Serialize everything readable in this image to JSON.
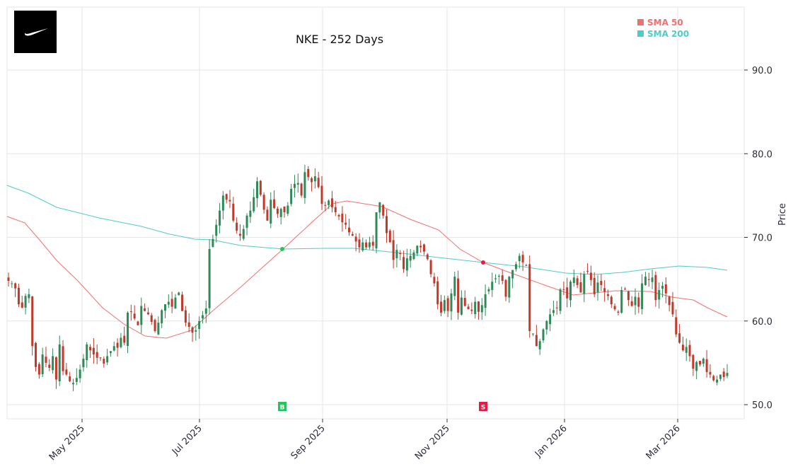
{
  "chart_data": {
    "type": "candlestick",
    "title": "NKE - 252 Days",
    "xlabel": "",
    "ylabel": "Price",
    "ylim": [
      48.3,
      97.5
    ],
    "y_ticks": [
      "50.0",
      "60.0",
      "70.0",
      "80.0",
      "90.0"
    ],
    "x_ticks": [
      "May 2025",
      "Jul 2025",
      "Sep 2025",
      "Nov 2025",
      "Jan 2026",
      "Mar 2026"
    ],
    "grid": true,
    "legend_position": "upper right",
    "legend": [
      {
        "name": "SMA 50",
        "color": "#f07070"
      },
      {
        "name": "SMA 200",
        "color": "#4ecdc4"
      }
    ],
    "colors": {
      "up": "#2e8b57",
      "down": "#c0392b",
      "sma50": "#f07070",
      "sma200": "#4ecdc4",
      "buy": "#22c55e",
      "sell": "#e11d48"
    },
    "signals": [
      {
        "type": "buy",
        "label": "B",
        "date": "Aug 2025",
        "cross_price": 68.6
      },
      {
        "type": "sell",
        "label": "S",
        "date": "Nov 2025",
        "cross_price": 67.0
      }
    ],
    "candles_close_trend": [
      64.8,
      64.5,
      63.9,
      62.0,
      61.6,
      63.0,
      63.2,
      57.0,
      54.5,
      53.6,
      56.0,
      55.0,
      54.4,
      55.8,
      53.0,
      57.2,
      54.0,
      53.6,
      52.8,
      52.6,
      53.2,
      54.2,
      55.5,
      57.2,
      56.5,
      56.0,
      55.6,
      55.6,
      54.9,
      55.8,
      56.4,
      57.0,
      56.8,
      58.0,
      57.4,
      61.0,
      61.1,
      60.3,
      59.5,
      61.8,
      61.2,
      60.8,
      59.9,
      58.8,
      59.8,
      61.3,
      62.0,
      62.3,
      61.7,
      62.8,
      63.4,
      61.2,
      59.8,
      59.3,
      58.6,
      58.9,
      60.0,
      60.7,
      61.5,
      68.6,
      69.8,
      71.5,
      73.2,
      75.0,
      74.5,
      74.3,
      72.0,
      70.8,
      70.2,
      71.0,
      72.6,
      73.2,
      74.8,
      76.7,
      75.1,
      73.3,
      72.0,
      74.5,
      73.5,
      72.8,
      73.4,
      73.0,
      73.8,
      75.8,
      76.4,
      76.5,
      75.0,
      77.8,
      77.2,
      76.6,
      77.3,
      76.0,
      74.0,
      73.8,
      74.4,
      73.6,
      73.0,
      72.5,
      71.8,
      71.5,
      70.6,
      70.2,
      69.5,
      68.8,
      69.4,
      68.8,
      69.4,
      69.0,
      73.0,
      74.2,
      72.6,
      70.5,
      69.4,
      67.3,
      68.5,
      68.0,
      66.2,
      67.5,
      67.8,
      68.2,
      69.0,
      68.8,
      68.3,
      67.4,
      65.6,
      64.5,
      62.0,
      61.0,
      62.5,
      61.2,
      63.3,
      65.3,
      61.0,
      62.8,
      61.8,
      61.4,
      61.2,
      62.3,
      61.1,
      61.9,
      63.2,
      63.8,
      64.7,
      65.1,
      65.4,
      64.8,
      62.9,
      65.3,
      66.1,
      66.8,
      67.8,
      67.0,
      66.6,
      58.8,
      58.5,
      57.0,
      57.6,
      59.0,
      60.0,
      60.8,
      61.3,
      61.6,
      63.8,
      63.8,
      62.7,
      64.7,
      65.2,
      64.3,
      63.4,
      65.6,
      65.9,
      64.9,
      63.2,
      64.6,
      64.3,
      63.5,
      63.0,
      62.0,
      61.4,
      61.0,
      63.7,
      63.8,
      62.5,
      61.8,
      62.9,
      61.7,
      64.5,
      65.3,
      64.9,
      65.2,
      62.5,
      63.7,
      64.2,
      63.3,
      61.9,
      60.8,
      58.4,
      57.4,
      56.5,
      56.9,
      55.8,
      54.3,
      55.1,
      54.8,
      55.5,
      53.9,
      53.6,
      52.9,
      53.0,
      53.6,
      53.3,
      53.8
    ]
  }
}
